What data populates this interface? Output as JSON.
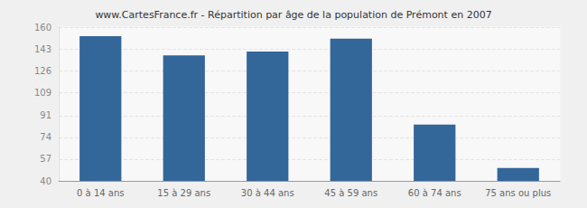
{
  "chart_data": {
    "type": "bar",
    "title": "www.CartesFrance.fr - Répartition par âge de la population de Prémont en 2007",
    "categories": [
      "0 à 14 ans",
      "15 à 29 ans",
      "30 à 44 ans",
      "45 à 59 ans",
      "60 à 74 ans",
      "75 ans ou plus"
    ],
    "values": [
      153,
      138,
      141,
      151,
      84,
      50
    ],
    "color": "#336699",
    "ylim": [
      40,
      160
    ],
    "yticks": [
      40,
      57,
      74,
      91,
      109,
      126,
      143,
      160
    ],
    "grid": true
  }
}
